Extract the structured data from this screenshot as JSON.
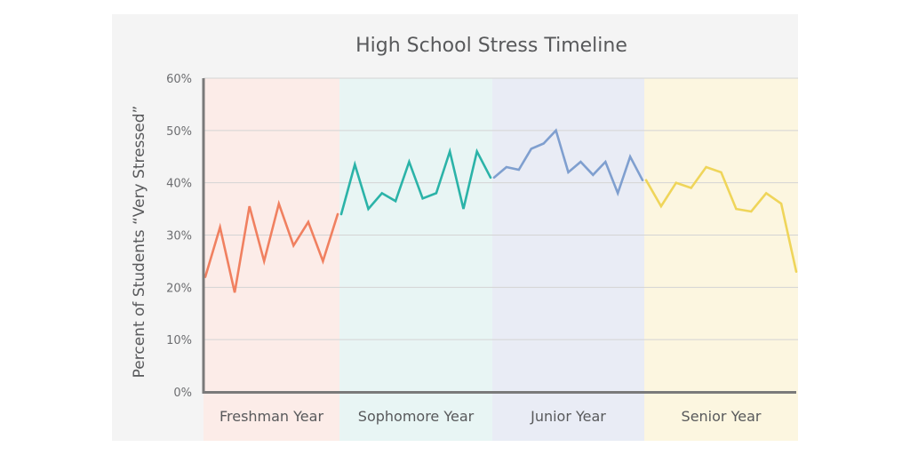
{
  "chart_data": {
    "type": "line",
    "title": "High School Stress Timeline",
    "ylabel": "Percent of Students “Very Stressed”",
    "xlabel": "",
    "ylim": [
      0,
      60
    ],
    "y_ticks": [
      {
        "value": 0,
        "label": "0%"
      },
      {
        "value": 10,
        "label": "10%"
      },
      {
        "value": 20,
        "label": "20%"
      },
      {
        "value": 30,
        "label": "30%"
      },
      {
        "value": 40,
        "label": "40%"
      },
      {
        "value": 50,
        "label": "50%"
      },
      {
        "value": 60,
        "label": "60%"
      }
    ],
    "grid": true,
    "legend": "none",
    "bands": [
      {
        "label": "Freshman Year",
        "color": "#f08060",
        "fill": "#fcece8"
      },
      {
        "label": "Sophomore Year",
        "color": "#2bb3a8",
        "fill": "#e8f5f4"
      },
      {
        "label": "Junior Year",
        "color": "#7f9fcf",
        "fill": "#e9ecf5"
      },
      {
        "label": "Senior Year",
        "color": "#efd55a",
        "fill": "#fcf6e0"
      }
    ],
    "series": [
      {
        "values": [
          22,
          31.5,
          19,
          35.5,
          25,
          36,
          28,
          32.5,
          25,
          34
        ]
      },
      {
        "values": [
          34,
          43.5,
          35,
          38,
          36.5,
          44,
          37,
          38,
          46,
          35,
          46,
          41
        ]
      },
      {
        "values": [
          41,
          43,
          42.5,
          46.5,
          47.5,
          50,
          42,
          44,
          41.5,
          44,
          38,
          45,
          40.5
        ]
      },
      {
        "values": [
          40.5,
          35.5,
          40,
          39,
          43,
          42,
          35,
          34.5,
          38,
          36,
          23
        ]
      }
    ]
  }
}
